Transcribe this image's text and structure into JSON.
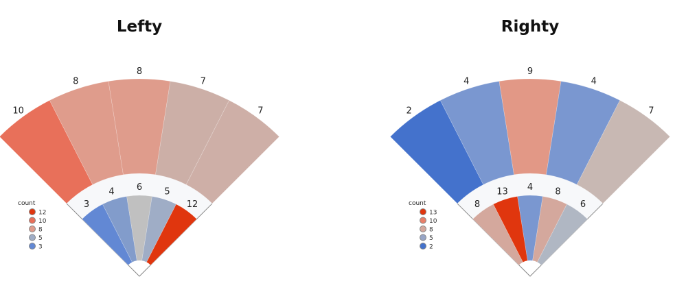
{
  "chart_data": [
    {
      "type": "spray-fan",
      "title": "Lefty",
      "outfield": {
        "values": [
          10,
          8,
          8,
          7,
          7
        ],
        "colors": [
          "#e8705a",
          "#df9c8c",
          "#df9c8c",
          "#ccafa7",
          "#ceafa7"
        ]
      },
      "infield": {
        "values": [
          3,
          4,
          6,
          5,
          12
        ],
        "colors": [
          "#6288d4",
          "#829ccb",
          "#c0c0c0",
          "#9fadc6",
          "#e0360e"
        ]
      },
      "legend": {
        "title": "count",
        "position": "left",
        "entries": [
          {
            "label": "12",
            "color": "#e0360e"
          },
          {
            "label": "10",
            "color": "#e8705a"
          },
          {
            "label": "8",
            "color": "#df9c8c"
          },
          {
            "label": "5",
            "color": "#9fadc6"
          },
          {
            "label": "3",
            "color": "#6288d4"
          }
        ]
      }
    },
    {
      "type": "spray-fan",
      "title": "Righty",
      "outfield": {
        "values": [
          2,
          4,
          9,
          4,
          7
        ],
        "colors": [
          "#4472cc",
          "#7a97d0",
          "#e29886",
          "#7a97d0",
          "#c8b8b3"
        ]
      },
      "infield": {
        "values": [
          8,
          13,
          4,
          8,
          6
        ],
        "colors": [
          "#d4a89d",
          "#e0360e",
          "#7a97d0",
          "#d4a89d",
          "#b0b7c3"
        ]
      },
      "legend": {
        "title": "count",
        "position": "left",
        "entries": [
          {
            "label": "13",
            "color": "#e0360e"
          },
          {
            "label": "10",
            "color": "#e8806a"
          },
          {
            "label": "8",
            "color": "#d4a89d"
          },
          {
            "label": "5",
            "color": "#97a5c6"
          },
          {
            "label": "2",
            "color": "#4472cc"
          }
        ]
      }
    }
  ]
}
